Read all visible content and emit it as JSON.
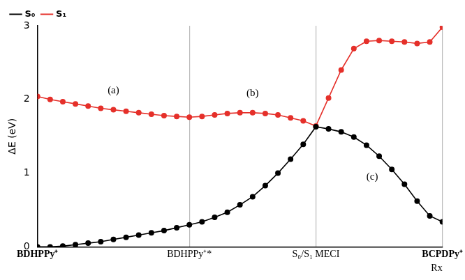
{
  "chart_data": {
    "type": "line",
    "y_label": "ΔE (eV)",
    "x_label": "Rx",
    "x": [
      0,
      1,
      2,
      3,
      4,
      5,
      6,
      7,
      8,
      9,
      10,
      11,
      12,
      13,
      14,
      15,
      16,
      17,
      18,
      19,
      20,
      21,
      22,
      23,
      24,
      25,
      26,
      27,
      28,
      29,
      30,
      31,
      32
    ],
    "xlim": [
      0,
      32
    ],
    "xticks": [
      {
        "value": 0,
        "label": "BDHPPy⁺"
      },
      {
        "value": 12,
        "label": "BDHPPy⁺*"
      },
      {
        "value": 22,
        "label": "S₀/S₁ MECI"
      },
      {
        "value": 32,
        "label": "BCPDPy⁺"
      }
    ],
    "ylim": [
      0,
      3
    ],
    "yticks": [
      0,
      1,
      2,
      3
    ],
    "grid": "x",
    "legend": "upper left",
    "marker": "circle",
    "series": [
      {
        "name": "S₀",
        "color": "#000000",
        "values": [
          0.0,
          0.0,
          0.01,
          0.03,
          0.05,
          0.07,
          0.1,
          0.13,
          0.16,
          0.19,
          0.22,
          0.26,
          0.3,
          0.34,
          0.4,
          0.47,
          0.57,
          0.68,
          0.83,
          1.0,
          1.19,
          1.39,
          1.63,
          1.6,
          1.56,
          1.49,
          1.38,
          1.23,
          1.05,
          0.85,
          0.62,
          0.42,
          0.34
        ]
      },
      {
        "name": "S₁",
        "color": "#e5302a",
        "values": [
          2.04,
          2.0,
          1.97,
          1.94,
          1.91,
          1.88,
          1.86,
          1.84,
          1.82,
          1.8,
          1.78,
          1.77,
          1.76,
          1.77,
          1.79,
          1.81,
          1.82,
          1.82,
          1.81,
          1.79,
          1.75,
          1.71,
          1.64,
          2.02,
          2.4,
          2.69,
          2.79,
          2.8,
          2.79,
          2.78,
          2.76,
          2.78,
          2.98
        ]
      }
    ],
    "annotations": [
      "(a)",
      "(b)",
      "(c)"
    ]
  }
}
